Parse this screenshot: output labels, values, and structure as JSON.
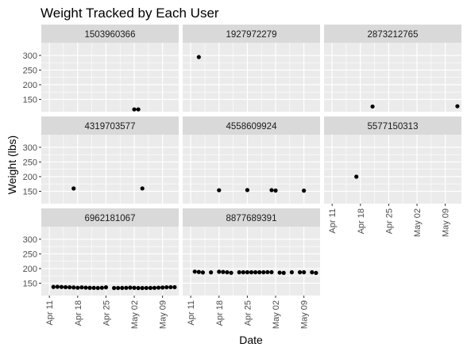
{
  "chart_data": {
    "type": "scatter",
    "title": "Weight Tracked by Each User",
    "xlabel": "Date",
    "ylabel": "Weight (lbs)",
    "x_range": [
      "2016-04-09",
      "2016-05-13"
    ],
    "y_range": [
      108,
      343
    ],
    "x_ticks": [
      {
        "date": "2016-04-11",
        "label": "Apr 11"
      },
      {
        "date": "2016-04-18",
        "label": "Apr 18"
      },
      {
        "date": "2016-04-25",
        "label": "Apr 25"
      },
      {
        "date": "2016-05-02",
        "label": "May 02"
      },
      {
        "date": "2016-05-09",
        "label": "May 09"
      }
    ],
    "y_ticks": [
      150,
      200,
      250,
      300
    ],
    "grid": true,
    "colors": {
      "panel_bg": "#ebebeb",
      "strip_bg": "#d9d9d9",
      "grid": "#ffffff",
      "point": "#000000"
    },
    "panels": [
      {
        "id": "1503960366",
        "points": [
          [
            "2016-05-02",
            115.9
          ],
          [
            "2016-05-03",
            115.9
          ]
        ]
      },
      {
        "id": "1927972279",
        "points": [
          [
            "2016-04-13",
            294.3
          ]
        ]
      },
      {
        "id": "2873212765",
        "points": [
          [
            "2016-04-21",
            125.7
          ],
          [
            "2016-05-12",
            126.8
          ]
        ]
      },
      {
        "id": "4319703577",
        "points": [
          [
            "2016-04-17",
            159.6
          ],
          [
            "2016-05-04",
            159.8
          ]
        ]
      },
      {
        "id": "4558609924",
        "points": [
          [
            "2016-04-18",
            153.7
          ],
          [
            "2016-04-25",
            154.3
          ],
          [
            "2016-05-01",
            154.1
          ],
          [
            "2016-05-02",
            152.6
          ],
          [
            "2016-05-09",
            152.3
          ]
        ]
      },
      {
        "id": "5577150313",
        "points": [
          [
            "2016-04-17",
            199.8
          ]
        ]
      },
      {
        "id": "6962181067",
        "points": [
          [
            "2016-04-12",
            137.4
          ],
          [
            "2016-04-13",
            137.8
          ],
          [
            "2016-04-14",
            137.2
          ],
          [
            "2016-04-15",
            136.5
          ],
          [
            "2016-04-16",
            136.2
          ],
          [
            "2016-04-17",
            135.6
          ],
          [
            "2016-04-18",
            134.5
          ],
          [
            "2016-04-19",
            135.9
          ],
          [
            "2016-04-20",
            134.8
          ],
          [
            "2016-04-21",
            134.3
          ],
          [
            "2016-04-22",
            134.1
          ],
          [
            "2016-04-23",
            133.8
          ],
          [
            "2016-04-24",
            134.5
          ],
          [
            "2016-04-25",
            136.0
          ],
          [
            "2016-04-27",
            133.6
          ],
          [
            "2016-04-28",
            133.8
          ],
          [
            "2016-04-29",
            133.9
          ],
          [
            "2016-04-30",
            134.2
          ],
          [
            "2016-05-01",
            135.0
          ],
          [
            "2016-05-02",
            134.4
          ],
          [
            "2016-05-03",
            133.7
          ],
          [
            "2016-05-04",
            133.6
          ],
          [
            "2016-05-05",
            133.8
          ],
          [
            "2016-05-06",
            133.9
          ],
          [
            "2016-05-07",
            134.2
          ],
          [
            "2016-05-08",
            134.9
          ],
          [
            "2016-05-09",
            135.4
          ],
          [
            "2016-05-10",
            136.1
          ],
          [
            "2016-05-11",
            136.5
          ],
          [
            "2016-05-12",
            136.5
          ]
        ]
      },
      {
        "id": "8877689391",
        "points": [
          [
            "2016-04-12",
            189.6
          ],
          [
            "2016-04-13",
            188.4
          ],
          [
            "2016-04-14",
            186.7
          ],
          [
            "2016-04-16",
            187.0
          ],
          [
            "2016-04-18",
            189.1
          ],
          [
            "2016-04-19",
            188.4
          ],
          [
            "2016-04-20",
            187.4
          ],
          [
            "2016-04-21",
            185.5
          ],
          [
            "2016-04-23",
            187.4
          ],
          [
            "2016-04-24",
            187.4
          ],
          [
            "2016-04-25",
            187.4
          ],
          [
            "2016-04-26",
            187.4
          ],
          [
            "2016-04-27",
            187.4
          ],
          [
            "2016-04-28",
            187.4
          ],
          [
            "2016-04-29",
            187.4
          ],
          [
            "2016-04-30",
            187.8
          ],
          [
            "2016-05-01",
            187.6
          ],
          [
            "2016-05-03",
            186.2
          ],
          [
            "2016-05-04",
            185.3
          ],
          [
            "2016-05-06",
            187.4
          ],
          [
            "2016-05-08",
            187.4
          ],
          [
            "2016-05-09",
            187.4
          ],
          [
            "2016-05-11",
            187.4
          ],
          [
            "2016-05-12",
            185.1
          ]
        ]
      }
    ]
  }
}
